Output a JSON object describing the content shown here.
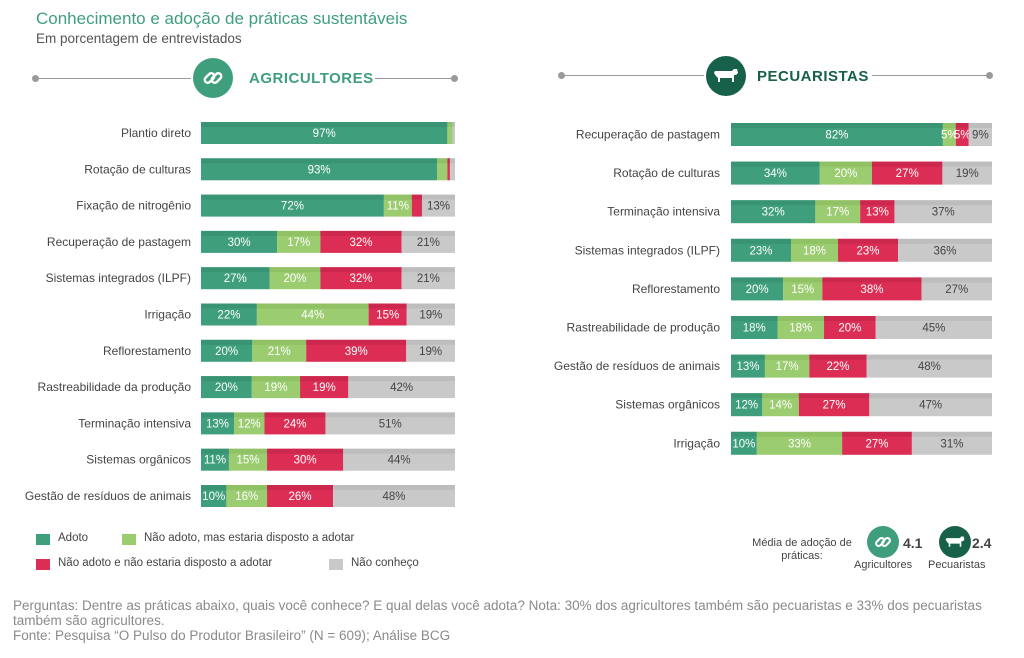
{
  "title": "Conhecimento e adoção de práticas sustentáveis",
  "subtitle": "Em porcentagem de entrevistados",
  "colors": {
    "adoto": "#3f9f7d",
    "disposto": "#9ccc70",
    "nao_disposto": "#dc2e55",
    "nao_conheco": "#c9c9c9"
  },
  "chart_data": [
    {
      "type": "bar",
      "orientation": "horizontal-stacked",
      "title": "AGRICULTORES",
      "icon": "link-icon",
      "series_names": [
        "Adoto",
        "Não adoto, mas estaria disposto a adotar",
        "Não adoto e não estaria disposto a adotar",
        "Não conheço"
      ],
      "categories": [
        "Plantio direto",
        "Rotação de culturas",
        "Fixação de nitrogênio",
        "Recuperação de pastagem",
        "Sistemas integrados (ILPF)",
        "Irrigação",
        "Reflorestamento",
        "Rastreabilidade da produção",
        "Terminação intensiva",
        "Sistemas orgânicos",
        "Gestão de resíduos de animais"
      ],
      "values": [
        [
          97,
          2,
          0,
          1
        ],
        [
          93,
          4,
          1,
          2
        ],
        [
          72,
          11,
          4,
          13
        ],
        [
          30,
          17,
          32,
          21
        ],
        [
          27,
          20,
          32,
          21
        ],
        [
          22,
          44,
          15,
          19
        ],
        [
          20,
          21,
          39,
          19
        ],
        [
          20,
          19,
          19,
          42
        ],
        [
          13,
          12,
          24,
          51
        ],
        [
          11,
          15,
          30,
          44
        ],
        [
          10,
          16,
          26,
          48
        ]
      ],
      "labels": [
        [
          "97%",
          "",
          "",
          ""
        ],
        [
          "93%",
          "",
          "",
          ""
        ],
        [
          "72%",
          "11%",
          "",
          "13%"
        ],
        [
          "30%",
          "17%",
          "32%",
          "21%"
        ],
        [
          "27%",
          "20%",
          "32%",
          "21%"
        ],
        [
          "22%",
          "44%",
          "15%",
          "19%"
        ],
        [
          "20%",
          "21%",
          "39%",
          "19%"
        ],
        [
          "20%",
          "19%",
          "19%",
          "42%"
        ],
        [
          "13%",
          "12%",
          "24%",
          "51%"
        ],
        [
          "11%",
          "15%",
          "30%",
          "44%"
        ],
        [
          "10%",
          "16%",
          "26%",
          "48%"
        ]
      ]
    },
    {
      "type": "bar",
      "orientation": "horizontal-stacked",
      "title": "PECUARISTAS",
      "icon": "cow-icon",
      "series_names": [
        "Adoto",
        "Não adoto, mas estaria disposto a adotar",
        "Não adoto e não estaria disposto a adotar",
        "Não conheço"
      ],
      "categories": [
        "Recuperação de pastagem",
        "Rotação de culturas",
        "Terminação intensiva",
        "Sistemas integrados (ILPF)",
        "Reflorestamento",
        "Rastreabilidade de produção",
        "Gestão de resíduos de animais",
        "Sistemas orgânicos",
        "Irrigação"
      ],
      "values": [
        [
          82,
          5,
          5,
          9
        ],
        [
          34,
          20,
          27,
          19
        ],
        [
          32,
          17,
          13,
          37
        ],
        [
          23,
          18,
          23,
          36
        ],
        [
          20,
          15,
          38,
          27
        ],
        [
          18,
          18,
          20,
          45
        ],
        [
          13,
          17,
          22,
          48
        ],
        [
          12,
          14,
          27,
          47
        ],
        [
          10,
          33,
          27,
          31
        ]
      ],
      "labels": [
        [
          "82%",
          "5%",
          "5%",
          "9%"
        ],
        [
          "34%",
          "20%",
          "27%",
          "19%"
        ],
        [
          "32%",
          "17%",
          "13%",
          "37%"
        ],
        [
          "23%",
          "18%",
          "23%",
          "36%"
        ],
        [
          "20%",
          "15%",
          "38%",
          "27%"
        ],
        [
          "18%",
          "18%",
          "20%",
          "45%"
        ],
        [
          "13%",
          "17%",
          "22%",
          "48%"
        ],
        [
          "12%",
          "14%",
          "27%",
          "47%"
        ],
        [
          "10%",
          "33%",
          "27%",
          "31%"
        ]
      ]
    }
  ],
  "legend": {
    "adoto": "Adoto",
    "disposto": "Não adoto, mas estaria disposto a adotar",
    "nao_disposto": "Não adoto e não estaria disposto a adotar",
    "nao_conheco": "Não conheço"
  },
  "average": {
    "label": "Média de adoção de práticas:",
    "agricultores_value": "4.1",
    "agricultores_name": "Agricultores",
    "pecuaristas_value": "2.4",
    "pecuaristas_name": "Pecuaristas"
  },
  "footer": {
    "question": "Perguntas: Dentre as práticas abaixo, quais você conhece? E qual delas você adota? Nota: 30% dos agricultores também são pecuaristas e 33% dos pecuaristas também são agricultores.",
    "source": "Fonte: Pesquisa “O Pulso do Produtor Brasileiro” (N = 609); Análise BCG"
  }
}
